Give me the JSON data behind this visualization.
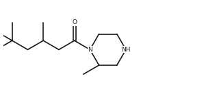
{
  "background_color": "#ffffff",
  "line_color": "#1a1a1a",
  "line_width": 1.2,
  "font_size": 6.5,
  "figsize": [
    2.98,
    1.34
  ],
  "dpi": 100,
  "xlim": [
    -0.5,
    10.5
  ],
  "ylim": [
    -2.8,
    2.2
  ],
  "N_label": "N",
  "NH_label": "NH",
  "O_label": "O"
}
